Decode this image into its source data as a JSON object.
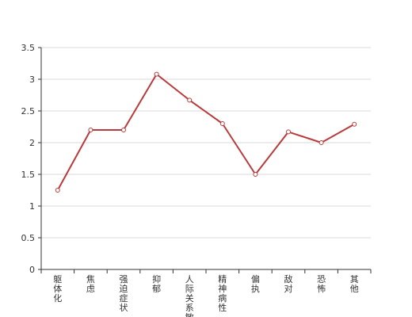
{
  "chart_data": {
    "type": "line",
    "categories": [
      "躯体化",
      "焦虑",
      "强迫症状",
      "抑郁",
      "人际关系敏感",
      "精神病性",
      "偏执",
      "敌对",
      "恐怖",
      "其他"
    ],
    "series": [
      {
        "values": [
          1.25,
          2.2,
          2.2,
          3.08,
          2.67,
          2.3,
          1.5,
          2.17,
          2.0,
          2.29
        ]
      }
    ],
    "ylim": [
      0,
      3.5
    ],
    "yticks": [
      "0",
      "0.5",
      "1",
      "1.5",
      "2",
      "2.5",
      "3",
      "3.5"
    ],
    "grid": true,
    "legend": "none",
    "colors": {
      "line": "#b83a3a",
      "grid": "#d9d9d9",
      "axis": "#333333",
      "marker_fill": "#ffffff"
    }
  }
}
